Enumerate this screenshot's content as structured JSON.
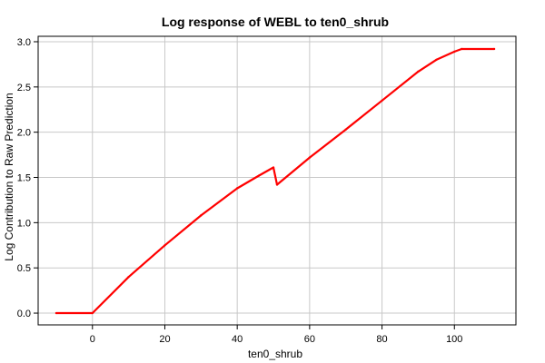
{
  "chart_data": {
    "type": "line",
    "title": "Log response of WEBL to ten0_shrub",
    "xlabel": "ten0_shrub",
    "ylabel": "Log Contribution to Raw Prediction",
    "xlim": [
      -15,
      117
    ],
    "ylim": [
      -0.13,
      3.06
    ],
    "xticks": [
      0,
      20,
      40,
      60,
      80,
      100
    ],
    "yticks": [
      0.0,
      0.5,
      1.0,
      1.5,
      2.0,
      2.5,
      3.0
    ],
    "grid": true,
    "series": [
      {
        "color": "#ff0000",
        "x": [
          -10,
          0,
          10,
          20,
          30,
          40,
          46,
          50,
          51,
          60,
          70,
          80,
          90,
          95,
          100,
          102,
          111
        ],
        "y": [
          0.0,
          0.0,
          0.4,
          0.75,
          1.08,
          1.38,
          1.52,
          1.61,
          1.42,
          1.72,
          2.03,
          2.35,
          2.67,
          2.8,
          2.89,
          2.92,
          2.92
        ]
      }
    ]
  }
}
